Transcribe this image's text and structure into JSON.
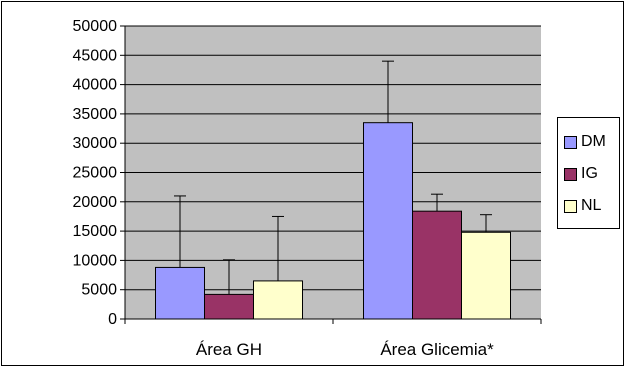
{
  "chart_data": {
    "type": "bar",
    "categories": [
      "Área GH",
      "Área Glicemia*"
    ],
    "series": [
      {
        "name": "DM",
        "color": "#9999ff",
        "values": [
          8800,
          33500
        ],
        "error_upper": [
          21000,
          44000
        ]
      },
      {
        "name": "IG",
        "color": "#993366",
        "values": [
          4200,
          18400
        ],
        "error_upper": [
          10100,
          21300
        ]
      },
      {
        "name": "NL",
        "color": "#ffffcc",
        "values": [
          6500,
          14800
        ],
        "error_upper": [
          17500,
          17800
        ]
      }
    ],
    "ylim": [
      0,
      50000
    ],
    "yticks": [
      0,
      5000,
      10000,
      15000,
      20000,
      25000,
      30000,
      35000,
      40000,
      45000,
      50000
    ],
    "grid": true,
    "plot_background": "#c0c0c0",
    "legend_position": "right",
    "title": "",
    "xlabel": "",
    "ylabel": ""
  }
}
